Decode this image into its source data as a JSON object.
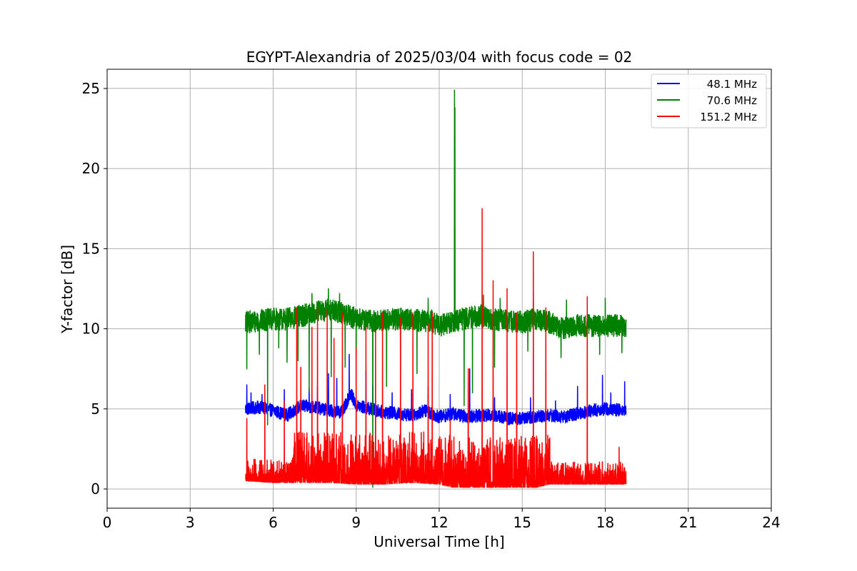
{
  "chart_data": {
    "type": "line",
    "title": "EGYPT-Alexandria of 2025/03/04 with focus code = 02",
    "xlabel": "Universal Time [h]",
    "ylabel": "Y-factor [dB]",
    "xlim": [
      0,
      24
    ],
    "ylim": [
      -1.2,
      26.2
    ],
    "xticks": [
      0,
      3,
      6,
      9,
      12,
      15,
      18,
      21,
      24
    ],
    "yticks": [
      0,
      5,
      10,
      15,
      20,
      25
    ],
    "xtick_labels": [
      "0",
      "3",
      "6",
      "9",
      "12",
      "15",
      "18",
      "21",
      "24"
    ],
    "ytick_labels": [
      "0",
      "5",
      "10",
      "15",
      "20",
      "25"
    ],
    "grid": true,
    "legend_position": "top-right",
    "series": [
      {
        "name": "48.1 MHz",
        "color": "#0000ff",
        "x_start": 5.0,
        "x_end": 18.75,
        "baseline": [
          [
            5.0,
            5.0
          ],
          [
            5.5,
            5.1
          ],
          [
            6.0,
            4.9
          ],
          [
            6.5,
            4.6
          ],
          [
            7.0,
            5.2
          ],
          [
            7.5,
            5.1
          ],
          [
            8.0,
            4.9
          ],
          [
            8.5,
            4.8
          ],
          [
            8.8,
            6.0
          ],
          [
            9.0,
            5.2
          ],
          [
            9.5,
            5.0
          ],
          [
            10.0,
            4.8
          ],
          [
            10.5,
            4.7
          ],
          [
            11.0,
            4.6
          ],
          [
            11.5,
            4.9
          ],
          [
            12.0,
            4.5
          ],
          [
            12.5,
            4.7
          ],
          [
            13.0,
            4.5
          ],
          [
            13.5,
            4.6
          ],
          [
            14.0,
            4.6
          ],
          [
            14.5,
            4.4
          ],
          [
            15.0,
            4.4
          ],
          [
            15.5,
            4.5
          ],
          [
            16.0,
            4.6
          ],
          [
            16.5,
            4.5
          ],
          [
            17.0,
            4.7
          ],
          [
            17.5,
            4.9
          ],
          [
            18.0,
            5.0
          ],
          [
            18.75,
            4.9
          ]
        ],
        "noise": 0.8,
        "spikes": [
          [
            5.05,
            6.5
          ],
          [
            5.2,
            6.0
          ],
          [
            5.6,
            5.9
          ],
          [
            6.4,
            6.2
          ],
          [
            7.3,
            6.3
          ],
          [
            7.6,
            6.4
          ],
          [
            8.0,
            7.2
          ],
          [
            8.3,
            6.9
          ],
          [
            8.75,
            8.4
          ],
          [
            9.35,
            7.4
          ],
          [
            9.6,
            6.5
          ],
          [
            10.3,
            6.0
          ],
          [
            11.0,
            6.2
          ],
          [
            11.6,
            6.4
          ],
          [
            12.4,
            5.9
          ],
          [
            13.1,
            7.5
          ],
          [
            14.0,
            5.7
          ],
          [
            15.3,
            5.7
          ],
          [
            16.2,
            5.5
          ],
          [
            17.0,
            6.4
          ],
          [
            17.9,
            7.1
          ],
          [
            18.2,
            6.0
          ],
          [
            18.7,
            6.7
          ]
        ]
      },
      {
        "name": "70.6 MHz",
        "color": "#008000",
        "x_start": 5.0,
        "x_end": 18.75,
        "baseline": [
          [
            5.0,
            10.4
          ],
          [
            6.0,
            10.6
          ],
          [
            6.5,
            10.6
          ],
          [
            7.0,
            10.8
          ],
          [
            7.5,
            11.0
          ],
          [
            8.0,
            11.2
          ],
          [
            8.5,
            11.0
          ],
          [
            9.0,
            10.6
          ],
          [
            9.5,
            10.5
          ],
          [
            10.0,
            10.5
          ],
          [
            10.5,
            10.6
          ],
          [
            11.0,
            10.6
          ],
          [
            11.3,
            10.5
          ],
          [
            11.7,
            10.5
          ],
          [
            12.0,
            10.2
          ],
          [
            12.5,
            10.4
          ],
          [
            13.0,
            10.7
          ],
          [
            13.5,
            10.8
          ],
          [
            14.0,
            10.6
          ],
          [
            14.5,
            10.5
          ],
          [
            15.0,
            10.4
          ],
          [
            15.5,
            10.6
          ],
          [
            16.0,
            10.4
          ],
          [
            16.5,
            10.0
          ],
          [
            17.0,
            10.2
          ],
          [
            17.5,
            10.2
          ],
          [
            18.0,
            10.2
          ],
          [
            18.75,
            10.2
          ]
        ],
        "noise": 1.4,
        "dips": [
          [
            5.05,
            7.5
          ],
          [
            5.5,
            8.4
          ],
          [
            5.8,
            4.0
          ],
          [
            6.2,
            8.8
          ],
          [
            6.5,
            7.9
          ],
          [
            6.9,
            8.0
          ],
          [
            7.3,
            6.1
          ],
          [
            8.1,
            7.0
          ],
          [
            8.6,
            7.6
          ],
          [
            9.0,
            6.2
          ],
          [
            9.6,
            0.1
          ],
          [
            10.1,
            6.4
          ],
          [
            10.6,
            6.4
          ],
          [
            11.2,
            7.2
          ],
          [
            12.9,
            5.2
          ],
          [
            13.2,
            6.0
          ],
          [
            14.0,
            7.6
          ],
          [
            15.2,
            8.6
          ],
          [
            16.4,
            8.2
          ],
          [
            17.8,
            8.4
          ],
          [
            18.6,
            8.5
          ]
        ],
        "spikes": [
          [
            7.4,
            12.2
          ],
          [
            8.0,
            12.5
          ],
          [
            8.4,
            12.2
          ],
          [
            11.6,
            11.9
          ],
          [
            12.55,
            24.9
          ],
          [
            12.57,
            23.8
          ],
          [
            13.6,
            12.1
          ],
          [
            14.2,
            11.9
          ],
          [
            15.4,
            12.3
          ],
          [
            16.6,
            11.8
          ],
          [
            18.0,
            11.9
          ]
        ]
      },
      {
        "name": "151.2 MHz",
        "color": "#ff0000",
        "x_start": 5.0,
        "x_end": 18.75,
        "baseline": [
          [
            5.0,
            0.5
          ],
          [
            6.0,
            0.4
          ],
          [
            7.0,
            0.4
          ],
          [
            8.0,
            0.4
          ],
          [
            9.0,
            0.3
          ],
          [
            10.0,
            0.3
          ],
          [
            11.0,
            0.4
          ],
          [
            12.0,
            0.3
          ],
          [
            12.5,
            0.1
          ],
          [
            13.5,
            0.1
          ],
          [
            14.5,
            0.1
          ],
          [
            15.5,
            0.1
          ],
          [
            16.0,
            0.3
          ],
          [
            17.0,
            0.3
          ],
          [
            17.5,
            0.3
          ],
          [
            18.75,
            0.3
          ]
        ],
        "noise": 2.0,
        "spikes": [
          [
            5.05,
            4.4
          ],
          [
            5.7,
            6.5
          ],
          [
            6.4,
            5.5
          ],
          [
            6.85,
            11.3
          ],
          [
            7.0,
            7.6
          ],
          [
            7.4,
            10.1
          ],
          [
            7.6,
            11.3
          ],
          [
            7.95,
            11.2
          ],
          [
            8.2,
            9.4
          ],
          [
            8.5,
            11.0
          ],
          [
            9.0,
            8.8
          ],
          [
            9.35,
            10.1
          ],
          [
            9.7,
            9.9
          ],
          [
            9.95,
            11.0
          ],
          [
            10.6,
            10.7
          ],
          [
            11.05,
            11.0
          ],
          [
            11.6,
            10.3
          ],
          [
            11.75,
            11.0
          ],
          [
            12.4,
            4.3
          ],
          [
            13.05,
            7.5
          ],
          [
            13.55,
            17.5
          ],
          [
            13.95,
            13.0
          ],
          [
            14.45,
            12.5
          ],
          [
            14.8,
            11.0
          ],
          [
            15.4,
            14.8
          ],
          [
            15.85,
            11.3
          ],
          [
            17.35,
            12.0
          ],
          [
            18.5,
            2.6
          ]
        ]
      }
    ]
  }
}
